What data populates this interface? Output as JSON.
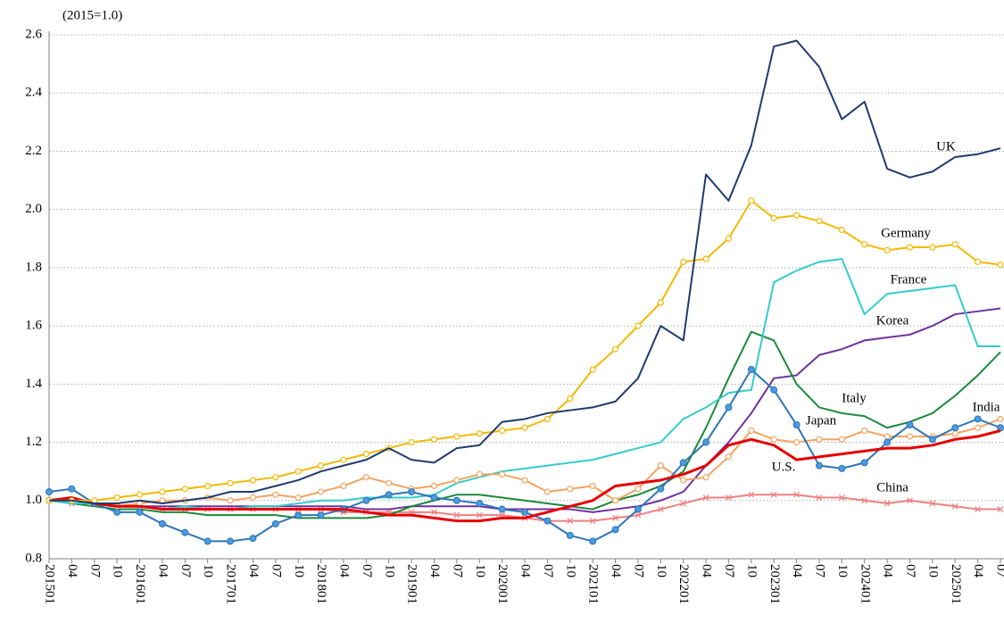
{
  "chart_data": {
    "type": "line",
    "unit_label": "(2015=1.0)",
    "categories": [
      "201501",
      "04",
      "07",
      "10",
      "201601",
      "04",
      "07",
      "10",
      "201701",
      "04",
      "07",
      "10",
      "201801",
      "04",
      "07",
      "10",
      "201901",
      "04",
      "07",
      "10",
      "202001",
      "04",
      "07",
      "10",
      "202101",
      "04",
      "07",
      "10",
      "202201",
      "04",
      "07",
      "10",
      "202301",
      "04",
      "07",
      "10",
      "202401",
      "04",
      "07",
      "10",
      "202501",
      "04",
      "07"
    ],
    "ylim": [
      0.8,
      2.6
    ],
    "yticks": [
      0.8,
      {
        "value": 1,
        "label": "1.0"
      },
      1.2,
      1.4,
      1.6,
      1.8,
      {
        "value": 2,
        "label": "2.0"
      },
      2.2,
      2.4,
      2.6
    ],
    "grid": true,
    "series": [
      {
        "name": "China",
        "color": "#f08080",
        "marker": "x",
        "values": [
          1.0,
          0.99,
          0.99,
          0.98,
          0.98,
          0.97,
          0.97,
          0.97,
          0.97,
          0.97,
          0.97,
          0.97,
          0.97,
          0.96,
          0.96,
          0.96,
          0.96,
          0.96,
          0.95,
          0.95,
          0.95,
          0.94,
          0.93,
          0.93,
          0.93,
          0.94,
          0.95,
          0.97,
          0.99,
          1.01,
          1.01,
          1.02,
          1.02,
          1.02,
          1.01,
          1.01,
          1.0,
          0.99,
          1.0,
          0.99,
          0.98,
          0.97,
          0.97
        ]
      },
      {
        "name": "Korea",
        "color": "#7030a0",
        "marker": "none",
        "values": [
          1.0,
          0.99,
          0.99,
          0.98,
          0.98,
          0.98,
          0.98,
          0.98,
          0.98,
          0.98,
          0.98,
          0.98,
          0.98,
          0.98,
          0.97,
          0.97,
          0.98,
          0.98,
          0.98,
          0.98,
          0.97,
          0.97,
          0.97,
          0.97,
          0.96,
          0.97,
          0.98,
          1.0,
          1.03,
          1.12,
          1.2,
          1.3,
          1.42,
          1.43,
          1.5,
          1.52,
          1.55,
          1.56,
          1.57,
          1.6,
          1.64,
          1.65,
          1.66
        ]
      },
      {
        "name": "Italy",
        "color": "#1a8a3a",
        "marker": "none",
        "values": [
          1.0,
          0.99,
          0.98,
          0.97,
          0.97,
          0.96,
          0.96,
          0.95,
          0.95,
          0.95,
          0.95,
          0.94,
          0.94,
          0.94,
          0.94,
          0.95,
          0.98,
          1.0,
          1.02,
          1.02,
          1.01,
          1.0,
          0.99,
          0.98,
          0.97,
          1.0,
          1.02,
          1.05,
          1.1,
          1.25,
          1.42,
          1.58,
          1.55,
          1.4,
          1.32,
          1.3,
          1.29,
          1.25,
          1.27,
          1.3,
          1.36,
          1.43,
          1.51
        ]
      },
      {
        "name": "France",
        "color": "#33cccc",
        "marker": "none",
        "values": [
          1.0,
          0.99,
          0.99,
          0.98,
          0.98,
          0.97,
          0.98,
          0.97,
          0.97,
          0.98,
          0.98,
          0.99,
          1.0,
          1.0,
          1.01,
          1.01,
          1.01,
          1.02,
          1.06,
          1.08,
          1.1,
          1.11,
          1.12,
          1.13,
          1.14,
          1.16,
          1.18,
          1.2,
          1.28,
          1.32,
          1.37,
          1.38,
          1.75,
          1.79,
          1.82,
          1.83,
          1.64,
          1.71,
          1.72,
          1.73,
          1.74,
          1.53,
          1.53
        ]
      },
      {
        "name": "Japan",
        "color": "#f4a460",
        "marker": "hollow",
        "values": [
          1.0,
          1.0,
          0.99,
          0.98,
          0.99,
          1.0,
          1.0,
          1.01,
          1.0,
          1.01,
          1.02,
          1.01,
          1.03,
          1.05,
          1.08,
          1.06,
          1.04,
          1.05,
          1.07,
          1.09,
          1.09,
          1.07,
          1.03,
          1.04,
          1.05,
          1.0,
          1.04,
          1.12,
          1.07,
          1.08,
          1.15,
          1.24,
          1.21,
          1.2,
          1.21,
          1.21,
          1.24,
          1.22,
          1.22,
          1.22,
          1.23,
          1.25,
          1.28
        ]
      },
      {
        "name": "India",
        "color": "#2e75b6",
        "marker": "dot",
        "values": [
          1.03,
          1.04,
          0.99,
          0.96,
          0.96,
          0.92,
          0.89,
          0.86,
          0.86,
          0.87,
          0.92,
          0.95,
          0.95,
          0.97,
          1.0,
          1.02,
          1.03,
          1.01,
          1.0,
          0.99,
          0.97,
          0.96,
          0.93,
          0.88,
          0.86,
          0.9,
          0.97,
          1.04,
          1.13,
          1.2,
          1.32,
          1.45,
          1.38,
          1.26,
          1.12,
          1.11,
          1.13,
          1.2,
          1.26,
          1.21,
          1.25,
          1.28,
          1.25
        ]
      },
      {
        "name": "U.S.",
        "color": "#e60000",
        "marker": "none",
        "values": [
          1.0,
          1.01,
          0.99,
          0.98,
          0.98,
          0.97,
          0.97,
          0.97,
          0.97,
          0.97,
          0.97,
          0.97,
          0.97,
          0.97,
          0.96,
          0.95,
          0.95,
          0.94,
          0.93,
          0.93,
          0.94,
          0.94,
          0.96,
          0.98,
          1.0,
          1.05,
          1.06,
          1.07,
          1.09,
          1.12,
          1.19,
          1.21,
          1.19,
          1.14,
          1.15,
          1.16,
          1.17,
          1.18,
          1.18,
          1.19,
          1.21,
          1.22,
          1.24
        ]
      },
      {
        "name": "Germany",
        "color": "#f5b800",
        "marker": "hollow",
        "values": [
          1.0,
          1.0,
          1.0,
          1.01,
          1.02,
          1.03,
          1.04,
          1.05,
          1.06,
          1.07,
          1.08,
          1.1,
          1.12,
          1.14,
          1.16,
          1.18,
          1.2,
          1.21,
          1.22,
          1.23,
          1.24,
          1.25,
          1.28,
          1.35,
          1.45,
          1.52,
          1.6,
          1.68,
          1.82,
          1.83,
          1.9,
          2.03,
          1.97,
          1.98,
          1.96,
          1.93,
          1.88,
          1.86,
          1.87,
          1.87,
          1.88,
          1.82,
          1.81
        ]
      },
      {
        "name": "UK",
        "color": "#1f3a6e",
        "marker": "none",
        "values": [
          1.0,
          1.0,
          0.99,
          0.99,
          1.0,
          0.99,
          1.0,
          1.01,
          1.03,
          1.03,
          1.05,
          1.07,
          1.1,
          1.12,
          1.14,
          1.18,
          1.14,
          1.13,
          1.18,
          1.19,
          1.27,
          1.28,
          1.3,
          1.31,
          1.32,
          1.34,
          1.42,
          1.6,
          1.55,
          2.12,
          2.03,
          2.22,
          2.56,
          2.58,
          2.49,
          2.31,
          2.37,
          2.14,
          2.11,
          2.13,
          2.18,
          2.19,
          2.21
        ]
      }
    ]
  }
}
